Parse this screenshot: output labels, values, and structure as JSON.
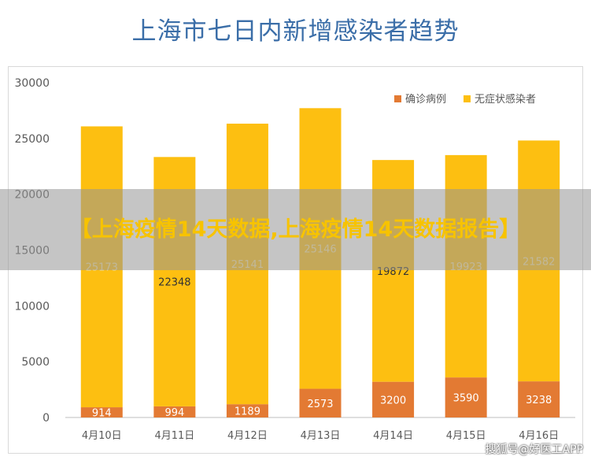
{
  "chart_data": {
    "type": "bar",
    "stacked": true,
    "title": "上海市七日内新增感染者趋势",
    "categories": [
      "4月10日",
      "4月11日",
      "4月12日",
      "4月13日",
      "4月14日",
      "4月15日",
      "4月16日"
    ],
    "series": [
      {
        "name": "确诊病例",
        "color": "#e37a33",
        "values": [
          914,
          994,
          1189,
          2573,
          3200,
          3590,
          3238
        ]
      },
      {
        "name": "无症状感染者",
        "color": "#fdbf11",
        "values": [
          25173,
          22348,
          25141,
          25146,
          19872,
          19923,
          21582
        ]
      }
    ],
    "ylim": [
      0,
      30000
    ],
    "yticks": [
      0,
      5000,
      10000,
      15000,
      20000,
      25000,
      30000
    ],
    "grid": false,
    "legend": "top-right",
    "xlabel": "",
    "ylabel": ""
  },
  "overlay": {
    "banner_text": "【上海疫情14天数据,上海疫情14天数据报告】",
    "watermark": "搜狐号@好医工APP"
  }
}
